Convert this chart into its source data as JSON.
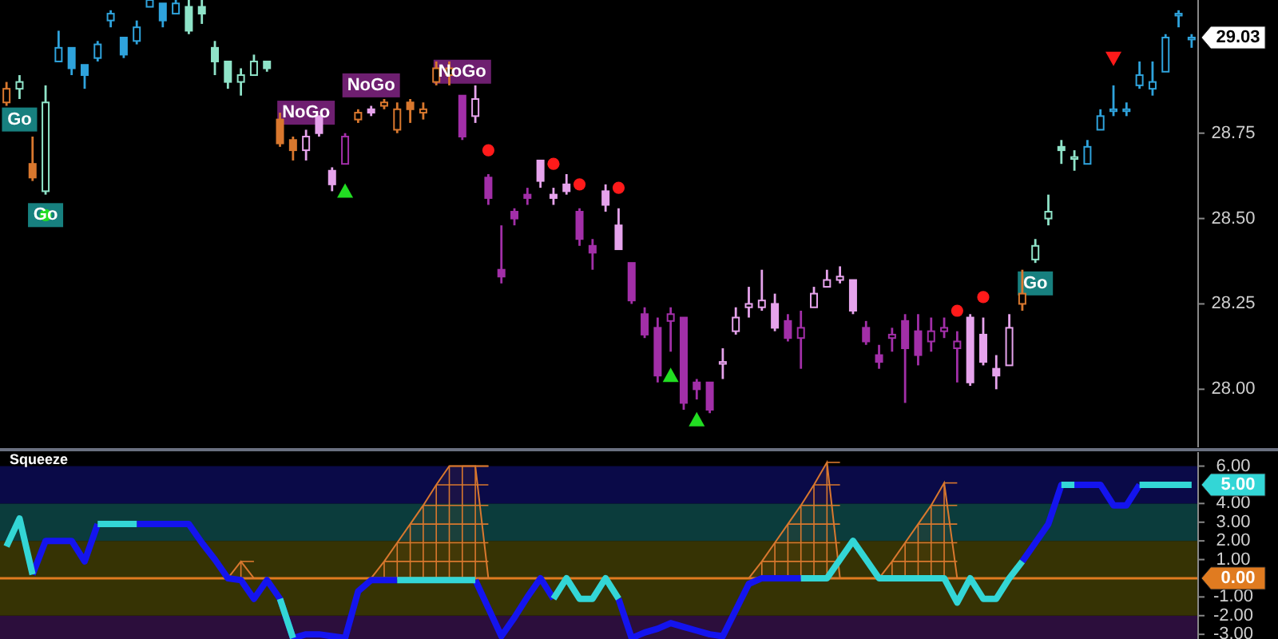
{
  "chart_data": [
    {
      "type": "candlestick",
      "categories": [
        null,
        null,
        null,
        null,
        null,
        null,
        null,
        null,
        null,
        null,
        null,
        null,
        null,
        null,
        null,
        null,
        null,
        null,
        null,
        null,
        null,
        null,
        null,
        null,
        null,
        null,
        null,
        null,
        null,
        null,
        null,
        null,
        null,
        null,
        null,
        null,
        null,
        null,
        null,
        null,
        null,
        null,
        null,
        null,
        null,
        null,
        null,
        null,
        null,
        null,
        null,
        null,
        null,
        null,
        null,
        null,
        null,
        null,
        null,
        null,
        null,
        null,
        null,
        null,
        null,
        null,
        null,
        null,
        null,
        null,
        null,
        null,
        null,
        null,
        null,
        null,
        null,
        null,
        null,
        null,
        null,
        null,
        null,
        null,
        null,
        null,
        null,
        null,
        null,
        null,
        null,
        null
      ],
      "ohlc": [
        [
          28.84,
          28.9,
          28.83,
          28.88
        ],
        [
          28.88,
          28.92,
          28.85,
          28.9
        ],
        [
          28.66,
          28.74,
          28.61,
          28.62
        ],
        [
          28.58,
          28.89,
          28.57,
          28.84
        ],
        [
          28.96,
          29.05,
          28.96,
          29.0
        ],
        [
          29.0,
          29.0,
          28.92,
          28.94
        ],
        [
          28.95,
          28.95,
          28.88,
          28.92
        ],
        [
          28.97,
          29.02,
          28.96,
          29.01
        ],
        [
          29.08,
          29.11,
          29.06,
          29.1
        ],
        [
          29.03,
          29.03,
          28.97,
          28.98
        ],
        [
          29.02,
          29.08,
          29.01,
          29.06
        ],
        [
          29.12,
          29.14,
          29.12,
          29.14
        ],
        [
          29.13,
          29.13,
          29.06,
          29.08
        ],
        [
          29.1,
          29.14,
          29.1,
          29.13
        ],
        [
          29.12,
          29.14,
          29.04,
          29.05
        ],
        [
          29.12,
          29.14,
          29.07,
          29.1
        ],
        [
          29.0,
          29.02,
          28.92,
          28.96
        ],
        [
          28.96,
          28.96,
          28.88,
          28.9
        ],
        [
          28.9,
          28.94,
          28.86,
          28.92
        ],
        [
          28.92,
          28.98,
          28.92,
          28.96
        ],
        [
          28.96,
          28.96,
          28.93,
          28.94
        ],
        [
          28.79,
          28.81,
          28.71,
          28.72
        ],
        [
          28.73,
          28.74,
          28.67,
          28.7
        ],
        [
          28.7,
          28.76,
          28.67,
          28.74
        ],
        [
          28.8,
          28.8,
          28.74,
          28.75
        ],
        [
          28.64,
          28.65,
          28.58,
          28.6
        ],
        [
          28.66,
          28.75,
          28.66,
          28.74
        ],
        [
          28.79,
          28.82,
          28.78,
          28.81
        ],
        [
          28.82,
          28.83,
          28.8,
          28.81
        ],
        [
          28.83,
          28.85,
          28.82,
          28.84
        ],
        [
          28.76,
          28.84,
          28.75,
          28.82
        ],
        [
          28.84,
          28.85,
          28.78,
          28.82
        ],
        [
          28.81,
          28.84,
          28.79,
          28.82
        ],
        [
          28.9,
          28.96,
          28.89,
          28.94
        ],
        [
          28.92,
          28.96,
          28.89,
          28.94
        ],
        [
          28.86,
          28.86,
          28.73,
          28.74
        ],
        [
          28.8,
          28.89,
          28.78,
          28.85
        ],
        [
          28.62,
          28.63,
          28.54,
          28.56
        ],
        [
          28.35,
          28.48,
          28.31,
          28.33
        ],
        [
          28.52,
          28.53,
          28.48,
          28.5
        ],
        [
          28.57,
          28.59,
          28.54,
          28.56
        ],
        [
          28.67,
          28.67,
          28.59,
          28.61
        ],
        [
          28.57,
          28.59,
          28.54,
          28.56
        ],
        [
          28.6,
          28.63,
          28.57,
          28.58
        ],
        [
          28.52,
          28.53,
          28.42,
          28.44
        ],
        [
          28.42,
          28.44,
          28.35,
          28.4
        ],
        [
          28.58,
          28.6,
          28.52,
          28.54
        ],
        [
          28.48,
          28.53,
          28.41,
          28.41
        ],
        [
          28.37,
          28.37,
          28.25,
          28.26
        ],
        [
          28.22,
          28.24,
          28.15,
          28.16
        ],
        [
          28.18,
          28.21,
          28.02,
          28.04
        ],
        [
          28.2,
          28.24,
          28.11,
          28.22
        ],
        [
          28.21,
          28.21,
          27.94,
          27.96
        ],
        [
          28.02,
          28.03,
          27.97,
          28.0
        ],
        [
          28.02,
          28.02,
          27.93,
          27.94
        ],
        [
          28.08,
          28.12,
          28.03,
          28.08
        ],
        [
          28.17,
          28.24,
          28.16,
          28.21
        ],
        [
          28.24,
          28.3,
          28.21,
          28.25
        ],
        [
          28.24,
          28.35,
          28.23,
          28.26
        ],
        [
          28.25,
          28.28,
          28.17,
          28.18
        ],
        [
          28.2,
          28.22,
          28.14,
          28.15
        ],
        [
          28.15,
          28.23,
          28.06,
          28.18
        ],
        [
          28.24,
          28.3,
          28.24,
          28.28
        ],
        [
          28.3,
          28.35,
          28.3,
          28.32
        ],
        [
          28.32,
          28.36,
          28.31,
          28.33
        ],
        [
          28.32,
          28.32,
          28.22,
          28.23
        ],
        [
          28.18,
          28.2,
          28.13,
          28.14
        ],
        [
          28.1,
          28.13,
          28.06,
          28.08
        ],
        [
          28.15,
          28.18,
          28.11,
          28.16
        ],
        [
          28.2,
          28.22,
          27.96,
          28.12
        ],
        [
          28.17,
          28.22,
          28.07,
          28.1
        ],
        [
          28.14,
          28.21,
          28.11,
          28.17
        ],
        [
          28.17,
          28.21,
          28.15,
          28.18
        ],
        [
          28.12,
          28.17,
          28.02,
          28.14
        ],
        [
          28.21,
          28.22,
          28.01,
          28.02
        ],
        [
          28.16,
          28.21,
          28.07,
          28.08
        ],
        [
          28.06,
          28.1,
          28.0,
          28.04
        ],
        [
          28.07,
          28.22,
          28.07,
          28.18
        ],
        [
          28.25,
          28.35,
          28.23,
          28.28
        ],
        [
          28.38,
          28.44,
          28.37,
          28.42
        ],
        [
          28.5,
          28.57,
          28.48,
          28.52
        ],
        [
          28.71,
          28.73,
          28.66,
          28.7
        ],
        [
          28.68,
          28.7,
          28.64,
          28.68
        ],
        [
          28.66,
          28.73,
          28.66,
          28.71
        ],
        [
          28.76,
          28.82,
          28.76,
          28.8
        ],
        [
          28.82,
          28.89,
          28.8,
          28.82
        ],
        [
          28.82,
          28.84,
          28.8,
          28.82
        ],
        [
          28.89,
          28.96,
          28.88,
          28.92
        ],
        [
          28.88,
          28.96,
          28.86,
          28.9
        ],
        [
          28.93,
          29.04,
          28.93,
          29.03
        ],
        [
          29.1,
          29.11,
          29.06,
          29.1
        ],
        [
          29.03,
          29.04,
          29.0,
          29.03
        ]
      ],
      "colors": [
        "#d9782e",
        "#8fe3c8",
        "#d9782e",
        "#8fe3c8",
        "#2fa3dc",
        "#2fa3dc",
        "#2fa3dc",
        "#2fa3dc",
        "#2fa3dc",
        "#2fa3dc",
        "#2fa3dc",
        "#2fa3dc",
        "#2fa3dc",
        "#2fa3dc",
        "#8fe3c8",
        "#8fe3c8",
        "#8fe3c8",
        "#8fe3c8",
        "#8fe3c8",
        "#8fe3c8",
        "#8fe3c8",
        "#d9782e",
        "#d9782e",
        "#e6a3ec",
        "#e6a3ec",
        "#e6a3ec",
        "#a22fa8",
        "#d9782e",
        "#e6a3ec",
        "#d9782e",
        "#d9782e",
        "#d9782e",
        "#d9782e",
        "#d9782e",
        "#d9782e",
        "#a22fa8",
        "#e6a3ec",
        "#a22fa8",
        "#a22fa8",
        "#a22fa8",
        "#a22fa8",
        "#e6a3ec",
        "#e6a3ec",
        "#e6a3ec",
        "#a22fa8",
        "#a22fa8",
        "#e6a3ec",
        "#e6a3ec",
        "#a22fa8",
        "#a22fa8",
        "#a22fa8",
        "#a22fa8",
        "#a22fa8",
        "#a22fa8",
        "#a22fa8",
        "#e6a3ec",
        "#e6a3ec",
        "#e6a3ec",
        "#e6a3ec",
        "#e6a3ec",
        "#a22fa8",
        "#a22fa8",
        "#e6a3ec",
        "#e6a3ec",
        "#e6a3ec",
        "#e6a3ec",
        "#a22fa8",
        "#a22fa8",
        "#a22fa8",
        "#a22fa8",
        "#a22fa8",
        "#a22fa8",
        "#a22fa8",
        "#a22fa8",
        "#e6a3ec",
        "#e6a3ec",
        "#e6a3ec",
        "#e6a3ec",
        "#d9782e",
        "#8fe3c8",
        "#8fe3c8",
        "#8fe3c8",
        "#8fe3c8",
        "#2fa3dc",
        "#2fa3dc",
        "#2fa3dc",
        "#2fa3dc",
        "#2fa3dc",
        "#2fa3dc",
        "#2fa3dc",
        "#2fa3dc",
        "#2fa3dc"
      ],
      "series": [
        {
          "type": "scatter",
          "marker": "circle",
          "color": "#ff1a1a",
          "values": [
            null,
            null,
            null,
            null,
            null,
            null,
            null,
            null,
            null,
            null,
            null,
            null,
            null,
            null,
            null,
            null,
            null,
            null,
            null,
            null,
            null,
            null,
            null,
            null,
            null,
            null,
            null,
            null,
            null,
            null,
            null,
            null,
            null,
            null,
            null,
            null,
            null,
            28.7,
            null,
            null,
            null,
            null,
            28.66,
            null,
            28.6,
            null,
            null,
            28.59,
            null,
            null,
            null,
            null,
            null,
            null,
            null,
            null,
            null,
            null,
            null,
            null,
            null,
            null,
            null,
            null,
            null,
            null,
            null,
            null,
            null,
            null,
            null,
            null,
            null,
            28.23,
            null,
            28.27,
            null,
            null,
            null,
            null,
            null,
            null,
            null,
            null,
            null,
            null,
            null,
            null,
            null,
            null,
            null,
            null
          ]
        },
        {
          "type": "scatter",
          "marker": "triangle",
          "color": "#22dd22",
          "values": [
            null,
            null,
            null,
            null,
            null,
            null,
            null,
            null,
            null,
            null,
            null,
            null,
            null,
            null,
            null,
            null,
            null,
            null,
            null,
            null,
            null,
            null,
            null,
            null,
            null,
            null,
            28.58,
            null,
            null,
            null,
            null,
            null,
            null,
            null,
            null,
            null,
            null,
            null,
            null,
            null,
            null,
            null,
            null,
            null,
            null,
            null,
            null,
            null,
            null,
            null,
            null,
            28.04,
            null,
            27.91,
            null,
            null,
            null,
            null,
            null,
            null,
            null,
            null,
            null,
            null,
            null,
            null,
            null,
            null,
            null,
            null,
            null,
            null,
            null,
            null,
            null,
            null,
            null,
            null,
            null,
            null,
            null,
            null,
            null,
            null,
            null,
            null,
            null,
            null,
            null,
            null,
            null,
            null
          ]
        },
        {
          "type": "scatter",
          "marker": "circle",
          "color": "#22dd22",
          "values": [
            null,
            null,
            null,
            28.51,
            null,
            null,
            null,
            null,
            null,
            null,
            null,
            null,
            null,
            null,
            null,
            null,
            null,
            null,
            null,
            null,
            null,
            null,
            null,
            null,
            null,
            null,
            null,
            null,
            null,
            null,
            null,
            null,
            null,
            null,
            null,
            null,
            null,
            null,
            null,
            null,
            null,
            null,
            null,
            null,
            null,
            null,
            null,
            null,
            null,
            null,
            null,
            null,
            null,
            null,
            null,
            null,
            null,
            null,
            null,
            null,
            null,
            null,
            null,
            null,
            null,
            null,
            null,
            null,
            null,
            null,
            null,
            null,
            null,
            null,
            null,
            null,
            null,
            null,
            null,
            null,
            null,
            null,
            null,
            null,
            null,
            null,
            null,
            null,
            null,
            null,
            null,
            null
          ]
        },
        {
          "type": "scatter",
          "marker": "triangle-down",
          "color": "#ff1a1a",
          "values": [
            null,
            null,
            null,
            null,
            null,
            null,
            null,
            null,
            null,
            null,
            null,
            null,
            null,
            null,
            null,
            null,
            null,
            null,
            null,
            null,
            null,
            null,
            null,
            null,
            null,
            null,
            null,
            null,
            null,
            null,
            null,
            null,
            null,
            null,
            null,
            null,
            null,
            null,
            null,
            null,
            null,
            null,
            null,
            null,
            null,
            null,
            null,
            null,
            null,
            null,
            null,
            null,
            null,
            null,
            null,
            null,
            null,
            null,
            null,
            null,
            null,
            null,
            null,
            null,
            null,
            null,
            null,
            null,
            null,
            null,
            null,
            null,
            null,
            null,
            null,
            null,
            null,
            null,
            null,
            null,
            null,
            null,
            null,
            null,
            null,
            28.97,
            null,
            null,
            null,
            null,
            null,
            null
          ]
        },
        {
          "type": "scatter",
          "marker": "square",
          "color": "#17807f",
          "values": [
            null,
            28.79,
            null,
            28.51,
            null,
            null,
            null,
            null,
            null,
            null,
            null,
            null,
            null,
            null,
            null,
            null,
            null,
            null,
            null,
            null,
            null,
            null,
            null,
            null,
            null,
            null,
            null,
            null,
            null,
            null,
            null,
            null,
            null,
            null,
            null,
            null,
            null,
            null,
            null,
            null,
            null,
            null,
            null,
            null,
            null,
            null,
            null,
            null,
            null,
            null,
            null,
            null,
            null,
            null,
            null,
            null,
            null,
            null,
            null,
            null,
            null,
            null,
            null,
            null,
            null,
            null,
            null,
            null,
            null,
            null,
            null,
            null,
            null,
            null,
            null,
            null,
            null,
            null,
            null,
            28.31,
            null,
            null,
            null,
            null,
            null,
            null,
            null,
            null,
            null,
            null,
            null,
            null
          ],
          "value_labels": [
            null,
            "Go",
            null,
            "Go",
            null,
            null,
            null,
            null,
            null,
            null,
            null,
            null,
            null,
            null,
            null,
            null,
            null,
            null,
            null,
            null,
            null,
            null,
            null,
            null,
            null,
            null,
            null,
            null,
            null,
            null,
            null,
            null,
            null,
            null,
            null,
            null,
            null,
            null,
            null,
            null,
            null,
            null,
            null,
            null,
            null,
            null,
            null,
            null,
            null,
            null,
            null,
            null,
            null,
            null,
            null,
            null,
            null,
            null,
            null,
            null,
            null,
            null,
            null,
            null,
            null,
            null,
            null,
            null,
            null,
            null,
            null,
            null,
            null,
            null,
            null,
            null,
            null,
            null,
            null,
            "Go",
            null,
            null,
            null,
            null,
            null,
            null,
            null,
            null,
            null,
            null,
            null,
            null
          ]
        },
        {
          "type": "scatter",
          "marker": "square",
          "color": "#6e1f70",
          "values": [
            null,
            null,
            null,
            null,
            null,
            null,
            null,
            null,
            null,
            null,
            null,
            null,
            null,
            null,
            null,
            null,
            null,
            null,
            null,
            null,
            null,
            null,
            null,
            28.81,
            null,
            null,
            null,
            null,
            28.89,
            null,
            null,
            null,
            null,
            null,
            null,
            28.93,
            null,
            null,
            null,
            null,
            null,
            null,
            null,
            null,
            null,
            null,
            null,
            null,
            null,
            null,
            null,
            null,
            null,
            null,
            null,
            null,
            null,
            null,
            null,
            null,
            null,
            null,
            null,
            null,
            null,
            null,
            null,
            null,
            null,
            null,
            null,
            null,
            null,
            null,
            null,
            null,
            null,
            null,
            null,
            null,
            null,
            null,
            null,
            null,
            null,
            null,
            null,
            null,
            null,
            null,
            null,
            null
          ],
          "value_labels": [
            null,
            null,
            null,
            null,
            null,
            null,
            null,
            null,
            null,
            null,
            null,
            null,
            null,
            null,
            null,
            null,
            null,
            null,
            null,
            null,
            null,
            null,
            null,
            "NoGo",
            null,
            null,
            null,
            null,
            "NoGo",
            null,
            null,
            null,
            null,
            null,
            null,
            "NoGo",
            null,
            null,
            null,
            null,
            null,
            null,
            null,
            null,
            null,
            null,
            null,
            null,
            null,
            null,
            null,
            null,
            null,
            null,
            null,
            null,
            null,
            null,
            null,
            null,
            null,
            null,
            null,
            null,
            null,
            null,
            null,
            null,
            null,
            null,
            null,
            null,
            null,
            null,
            null,
            null,
            null,
            null,
            null,
            null,
            null,
            null,
            null,
            null,
            null,
            null,
            null,
            null,
            null,
            null,
            null,
            null
          ]
        }
      ],
      "annotations": [
        "29.03"
      ],
      "ylim": [
        27.83,
        29.14
      ],
      "yticks": [
        {
          "value": 28,
          "label": "28.00"
        },
        {
          "value": 28.25,
          "label": "28.25"
        },
        {
          "value": 28.5,
          "label": "28.50"
        },
        {
          "value": 28.75,
          "label": "28.75"
        }
      ]
    },
    {
      "type": "line",
      "title": "Squeeze",
      "categories": [
        null,
        null,
        null,
        null,
        null,
        null,
        null,
        null,
        null,
        null,
        null,
        null,
        null,
        null,
        null,
        null,
        null,
        null,
        null,
        null,
        null,
        null,
        null,
        null,
        null,
        null,
        null,
        null,
        null,
        null,
        null,
        null,
        null,
        null,
        null,
        null,
        null,
        null,
        null,
        null,
        null,
        null,
        null,
        null,
        null,
        null,
        null,
        null,
        null,
        null,
        null,
        null,
        null,
        null,
        null,
        null,
        null,
        null,
        null,
        null,
        null,
        null,
        null,
        null,
        null,
        null,
        null,
        null,
        null,
        null,
        null,
        null,
        null,
        null,
        null,
        null,
        null,
        null,
        null,
        null,
        null,
        null,
        null,
        null,
        null,
        null,
        null,
        null,
        null,
        null,
        null,
        null
      ],
      "series": [
        {
          "type": "area",
          "color": "#d9782e",
          "values": [
            null,
            null,
            null,
            null,
            null,
            null,
            null,
            null,
            null,
            null,
            null,
            null,
            null,
            null,
            null,
            null,
            null,
            0,
            0.9,
            0,
            null,
            null,
            null,
            null,
            null,
            null,
            null,
            null,
            0,
            0.9,
            1.9,
            2.9,
            3.9,
            5.0,
            6.0,
            6.0,
            6.0,
            0,
            null,
            null,
            null,
            null,
            null,
            null,
            null,
            null,
            null,
            null,
            null,
            null,
            null,
            null,
            null,
            null,
            null,
            null,
            null,
            0,
            0.9,
            1.9,
            2.9,
            3.9,
            5.0,
            6.2,
            0,
            null,
            null,
            0,
            0.9,
            1.9,
            2.9,
            3.9,
            5.1,
            0,
            null,
            null,
            null,
            null,
            null,
            null,
            null,
            null,
            null,
            null,
            null,
            null,
            null,
            null,
            null,
            null,
            null,
            null
          ]
        },
        {
          "type": "line",
          "color": "#1414ee",
          "values": [
            null,
            null,
            0.2,
            2.0,
            2.0,
            2.0,
            0.9,
            2.9,
            null,
            null,
            2.9,
            2.9,
            2.9,
            2.9,
            2.9,
            1.9,
            1.0,
            0,
            -0.1,
            -1.1,
            -0.1,
            -1.1,
            -3.2,
            -3.0,
            -3.0,
            -3.1,
            -3.2,
            -0.7,
            -0.1,
            -0.1,
            -0.1,
            null,
            null,
            null,
            null,
            null,
            -0.1,
            -1.6,
            -3.1,
            -2.1,
            -1.0,
            0,
            -1.1,
            null,
            null,
            null,
            null,
            -1.1,
            -3.2,
            -2.9,
            -2.7,
            -2.4,
            -2.6,
            -2.8,
            -3.0,
            -3.1,
            -1.7,
            -0.3,
            0,
            0,
            0,
            0,
            null,
            null,
            null,
            null,
            null,
            null,
            null,
            null,
            null,
            null,
            null,
            null,
            null,
            null,
            null,
            null,
            0.9,
            1.9,
            2.9,
            5.0,
            5.0,
            5.0,
            5.0,
            3.9,
            3.9,
            5.0,
            null,
            null,
            null,
            null
          ]
        },
        {
          "type": "line",
          "color": "#33d6d6",
          "values": [
            1.7,
            3.2,
            0.2,
            null,
            null,
            null,
            null,
            2.9,
            2.9,
            2.9,
            2.9,
            null,
            null,
            null,
            null,
            null,
            null,
            null,
            null,
            null,
            null,
            -1.1,
            -3.2,
            null,
            null,
            null,
            null,
            null,
            null,
            null,
            -0.1,
            -0.1,
            -0.1,
            -0.1,
            -0.1,
            -0.1,
            -0.1,
            null,
            null,
            null,
            null,
            null,
            -1.1,
            0,
            -1.1,
            -1.1,
            0,
            -1.1,
            null,
            null,
            null,
            null,
            null,
            null,
            null,
            null,
            null,
            null,
            null,
            null,
            null,
            0,
            0,
            0,
            1.0,
            2.0,
            1.0,
            0,
            0,
            0,
            0,
            0,
            0,
            -1.3,
            0,
            -1.1,
            -1.1,
            0,
            0.9,
            null,
            null,
            5.0,
            5.0,
            null,
            null,
            null,
            null,
            5.0,
            5.0,
            5.0,
            5.0,
            5.0
          ]
        }
      ],
      "bands": [
        {
          "axis": "y",
          "from": -3.25,
          "to": -2,
          "color": "#2c0e3c"
        },
        {
          "axis": "y",
          "from": -2,
          "to": 2,
          "color": "#363304"
        },
        {
          "axis": "y",
          "from": 2,
          "to": 4,
          "color": "#0b3c3c"
        },
        {
          "axis": "y",
          "from": 4,
          "to": 6,
          "color": "#0a0a48"
        }
      ],
      "ref_lines": [
        {
          "axis": "y",
          "value": 0,
          "label": "0.00",
          "color": "#e07b20",
          "line_style": "solid"
        }
      ],
      "annotations": [
        "5.00"
      ],
      "ylim": [
        -3.25,
        6.75
      ],
      "yticks": [
        {
          "value": 6,
          "label": "6.00"
        },
        {
          "value": 4,
          "label": "4.00"
        },
        {
          "value": 3,
          "label": "3.00"
        },
        {
          "value": 2,
          "label": "2.00"
        },
        {
          "value": 1,
          "label": "1.00"
        },
        {
          "value": -1,
          "label": "-1.00"
        },
        {
          "value": -2,
          "label": "-2.00"
        },
        {
          "value": -3,
          "label": "-3.00"
        }
      ]
    }
  ]
}
